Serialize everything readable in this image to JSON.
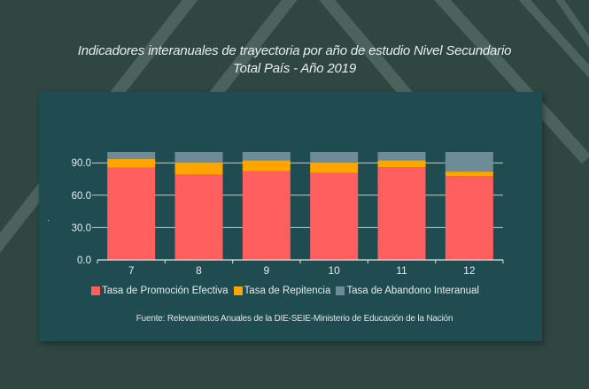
{
  "title": {
    "line1": "Indicadores interanuales de trayectoria por año de estudio Nivel Secundario",
    "line2": "Total País - Año 2019"
  },
  "colors": {
    "background": "#2f4641",
    "card": "#1f4c51",
    "promocion": "#ff5f5f",
    "repitencia": "#ffa500",
    "abandono": "#6e8b98",
    "axis": "#dfe7e6"
  },
  "chart_data": {
    "type": "bar",
    "stacked": true,
    "title": "Indicadores interanuales de trayectoria por año de estudio Nivel Secundario Total País - Año 2019",
    "xlabel": "",
    "ylabel": "",
    "categories": [
      "7",
      "8",
      "9",
      "10",
      "11",
      "12"
    ],
    "series": [
      {
        "name": "Tasa de Promoción Efectiva",
        "color": "#ff5f5f",
        "values": [
          85.5,
          79.2,
          82.2,
          80.8,
          86.0,
          77.8
        ]
      },
      {
        "name": "Tasa de Repitencia",
        "color": "#ffa500",
        "values": [
          8.2,
          10.9,
          10.1,
          9.3,
          6.3,
          4.1
        ]
      },
      {
        "name": "Tasa de Abandono Interanual",
        "color": "#6e8b98",
        "values": [
          6.3,
          9.9,
          7.7,
          9.9,
          7.7,
          18.1
        ]
      }
    ],
    "yticks": [
      "0.0",
      "30.0",
      "60.0",
      "90.0"
    ],
    "ytick_values": [
      0,
      30,
      60,
      90
    ],
    "ylim": [
      0,
      100
    ],
    "grid": true,
    "legend_position": "bottom"
  },
  "legend": [
    {
      "label": "Tasa de Promoción Efectiva"
    },
    {
      "label": "Tasa de Repitencia"
    },
    {
      "label": "Tasa de Abandono Interanual"
    }
  ],
  "source": "Fuente: Relevamietos Anuales de la DIE-SEIE-Ministerio de Educación de la Nación"
}
